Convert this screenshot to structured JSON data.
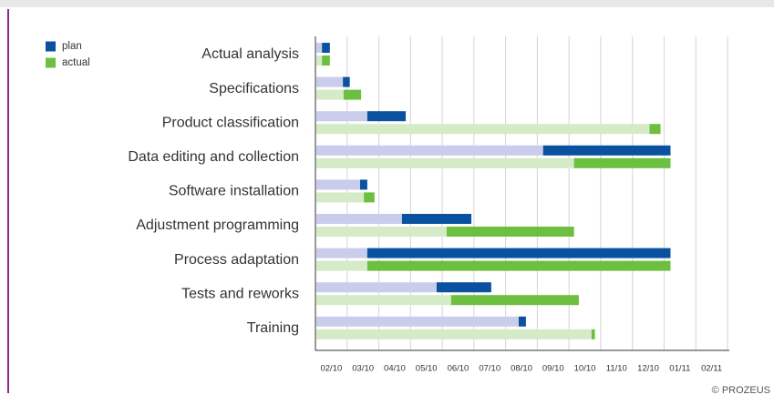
{
  "chart_data": {
    "type": "gantt",
    "categories": [
      "Actual analysis",
      "Specifications",
      "Product classification",
      "Data editing and collection",
      "Software installation",
      "Adjustment programming",
      "Process adaptation",
      "Tests and reworks",
      "Training"
    ],
    "x_categories": [
      "02/10",
      "03/10",
      "04/10",
      "05/10",
      "06/10",
      "07/10",
      "08/10",
      "09/10",
      "10/10",
      "11/10",
      "12/10",
      "01/11",
      "02/11"
    ],
    "xlim": [
      0,
      12
    ],
    "grid": true,
    "series": [
      {
        "name": "plan",
        "color": "#0a52a0",
        "lead_color": "#c9cdeb",
        "values": [
          [
            0.19,
            0.42
          ],
          [
            0.8,
            1.0
          ],
          [
            1.51,
            2.63
          ],
          [
            6.63,
            10.34
          ],
          [
            1.3,
            1.51
          ],
          [
            2.52,
            4.54
          ],
          [
            1.51,
            10.34
          ],
          [
            3.53,
            5.12
          ],
          [
            5.92,
            6.13
          ]
        ]
      },
      {
        "name": "actual",
        "color": "#6cbf3f",
        "lead_color": "#d5ebc8",
        "values": [
          [
            0.19,
            0.42
          ],
          [
            0.82,
            1.33
          ],
          [
            9.73,
            10.05
          ],
          [
            7.53,
            10.34
          ],
          [
            1.41,
            1.72
          ],
          [
            3.82,
            7.53
          ],
          [
            1.51,
            10.34
          ],
          [
            3.95,
            7.67
          ],
          [
            8.04,
            8.14
          ]
        ]
      }
    ],
    "footer": "© PROZEUS"
  }
}
